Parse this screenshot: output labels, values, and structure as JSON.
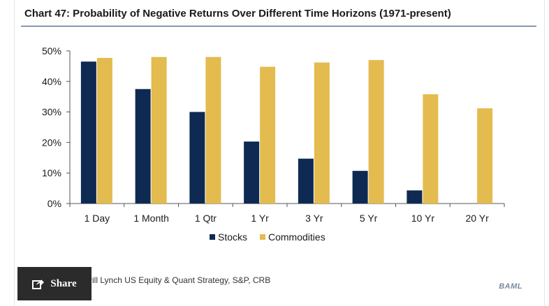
{
  "chart_data": {
    "type": "bar",
    "title": "Chart 47: Probability of Negative Returns Over Different Time Horizons (1971-present)",
    "categories": [
      "1 Day",
      "1 Month",
      "1 Qtr",
      "1 Yr",
      "3 Yr",
      "5 Yr",
      "10 Yr",
      "20 Yr"
    ],
    "series": [
      {
        "name": "Stocks",
        "color": "#0e2a52",
        "values": [
          46.5,
          37.5,
          30,
          20.3,
          14.7,
          10.7,
          4.3,
          0
        ]
      },
      {
        "name": "Commodities",
        "color": "#e3bb4f",
        "values": [
          47.7,
          48,
          48,
          44.8,
          46.2,
          47,
          35.8,
          31.2
        ]
      }
    ],
    "ylim": [
      0,
      50
    ],
    "yticks": [
      "0%",
      "10%",
      "20%",
      "30%",
      "40%",
      "50%"
    ],
    "ytick_values": [
      0,
      10,
      20,
      30,
      40,
      50
    ],
    "legend_position": "bottom",
    "grid": false
  },
  "footer": {
    "source": "rill Lynch US Equity & Quant Strategy, S&P, CRB",
    "brand": "BAML"
  },
  "share": {
    "label": "Share",
    "icon": "share-icon"
  }
}
